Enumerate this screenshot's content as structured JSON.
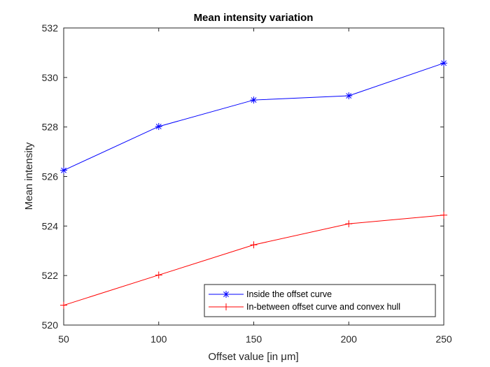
{
  "chart_data": {
    "type": "line",
    "title": "Mean intensity variation",
    "xlabel": "Offset value [in μm]",
    "ylabel": "Mean intensity",
    "xlim": [
      50,
      250
    ],
    "ylim": [
      520,
      532
    ],
    "xticks": [
      50,
      100,
      150,
      200,
      250
    ],
    "yticks": [
      520,
      522,
      524,
      526,
      528,
      530,
      532
    ],
    "grid": false,
    "legend_position": "bottom-right",
    "x": [
      50,
      100,
      150,
      200,
      250
    ],
    "series": [
      {
        "name": "Inside the offset curve",
        "values": [
          526.25,
          528.02,
          529.09,
          529.26,
          530.58
        ],
        "color": "#0000ff",
        "marker": "asterisk"
      },
      {
        "name": "In-between offset curve and convex hull",
        "values": [
          520.8,
          522.02,
          523.24,
          524.09,
          524.44
        ],
        "color": "#ff0000",
        "marker": "plus"
      }
    ]
  }
}
